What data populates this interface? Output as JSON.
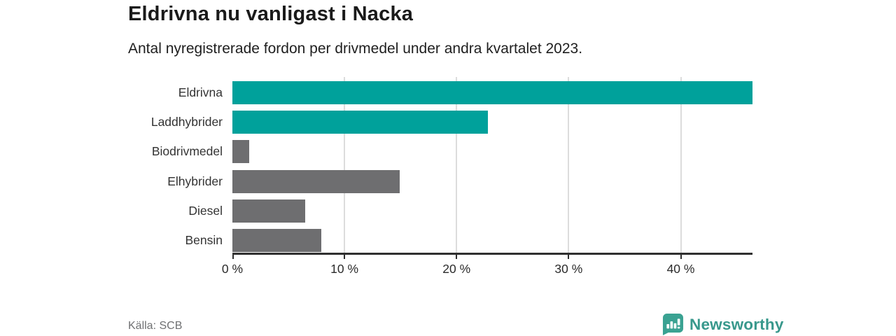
{
  "header": {
    "title": "Eldrivna nu vanligast i Nacka",
    "subtitle": "Antal nyregistrerade fordon per drivmedel under andra kvartalet 2023."
  },
  "chart_data": {
    "type": "bar",
    "orientation": "horizontal",
    "title": "Eldrivna nu vanligast i Nacka",
    "subtitle": "Antal nyregistrerade fordon per drivmedel under andra kvartalet 2023.",
    "categories": [
      "Eldrivna",
      "Laddhybrider",
      "Biodrivmedel",
      "Elhybrider",
      "Diesel",
      "Bensin"
    ],
    "values": [
      46.4,
      22.8,
      1.5,
      14.9,
      6.5,
      7.9
    ],
    "unit": "%",
    "bar_colors": [
      "#00a19b",
      "#00a19b",
      "#6e6e70",
      "#6e6e70",
      "#6e6e70",
      "#6e6e70"
    ],
    "x_axis": {
      "min": 0,
      "max": 46.4,
      "tick_values": [
        0,
        10,
        20,
        30,
        40
      ],
      "tick_labels": [
        "0 %",
        "10 %",
        "20 %",
        "30 %",
        "40 %"
      ]
    },
    "y_axis_label": "",
    "x_axis_label": "",
    "grid": true,
    "legend": false
  },
  "footer": {
    "source": "Källa: SCB",
    "brand_name": "Newsworthy"
  },
  "colors": {
    "accent_teal": "#00a19b",
    "bar_gray": "#6e6e70",
    "grid": "#dcdcdc",
    "axis": "#2f2f2f",
    "logo_teal": "#3aa292",
    "logo_text_teal": "#38988c"
  },
  "icons": {
    "brand_icon": "newsworthy-speech-bubble-bar-chart-icon"
  }
}
